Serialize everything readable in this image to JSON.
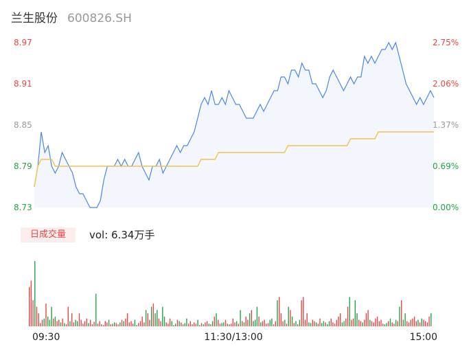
{
  "header": {
    "name": "兰生股份",
    "code": "600826.SH"
  },
  "volume_panel": {
    "tab_label": "日成交量",
    "vol_text": "vol: 6.34万手"
  },
  "colors": {
    "price_line": "#4a86e8",
    "avg_line": "#f3c250",
    "up": "#e84545",
    "down": "#22a447",
    "flat": "#999999"
  },
  "chart_data": [
    {
      "type": "line",
      "title": "",
      "xlabel": "",
      "ylabel": "",
      "x_tick_labels": [
        "09:30",
        "11:30/13:00",
        "15:00"
      ],
      "y_left_ticks": [
        "8.97",
        "8.91",
        "8.85",
        "8.79",
        "8.73"
      ],
      "y_right_ticks": [
        "2.75%",
        "2.06%",
        "1.37%",
        "0.69%",
        "0.00%"
      ],
      "ylim": [
        8.73,
        8.97
      ],
      "prev_close": 8.73,
      "grid": false,
      "series": [
        {
          "role": "price",
          "values": [
            8.76,
            8.79,
            8.84,
            8.81,
            8.82,
            8.79,
            8.78,
            8.79,
            8.81,
            8.8,
            8.79,
            8.78,
            8.76,
            8.75,
            8.75,
            8.74,
            8.73,
            8.73,
            8.73,
            8.74,
            8.77,
            8.79,
            8.79,
            8.79,
            8.8,
            8.79,
            8.8,
            8.79,
            8.79,
            8.8,
            8.81,
            8.79,
            8.78,
            8.77,
            8.79,
            8.79,
            8.8,
            8.78,
            8.79,
            8.8,
            8.81,
            8.82,
            8.81,
            8.82,
            8.82,
            8.83,
            8.84,
            8.86,
            8.88,
            8.89,
            8.88,
            8.9,
            8.88,
            8.88,
            8.89,
            8.88,
            8.9,
            8.89,
            8.88,
            8.88,
            8.87,
            8.86,
            8.86,
            8.86,
            8.87,
            8.88,
            8.87,
            8.88,
            8.89,
            8.9,
            8.9,
            8.92,
            8.92,
            8.91,
            8.93,
            8.93,
            8.92,
            8.94,
            8.93,
            8.93,
            8.91,
            8.91,
            8.9,
            8.89,
            8.9,
            8.92,
            8.93,
            8.92,
            8.91,
            8.9,
            8.91,
            8.92,
            8.91,
            8.92,
            8.92,
            8.95,
            8.94,
            8.95,
            8.94,
            8.95,
            8.96,
            8.96,
            8.97,
            8.96,
            8.97,
            8.95,
            8.93,
            8.91,
            8.9,
            8.89,
            8.88,
            8.89,
            8.88,
            8.89,
            8.9,
            8.89
          ]
        },
        {
          "role": "average",
          "values": [
            8.76,
            8.79,
            8.8,
            8.8,
            8.8,
            8.8,
            8.79,
            8.79,
            8.79,
            8.79,
            8.79,
            8.79,
            8.79,
            8.79,
            8.79,
            8.79,
            8.79,
            8.79,
            8.79,
            8.79,
            8.79,
            8.79,
            8.79,
            8.79,
            8.79,
            8.79,
            8.79,
            8.79,
            8.79,
            8.79,
            8.79,
            8.79,
            8.79,
            8.79,
            8.79,
            8.79,
            8.79,
            8.79,
            8.79,
            8.79,
            8.79,
            8.79,
            8.79,
            8.79,
            8.79,
            8.79,
            8.79,
            8.79,
            8.8,
            8.8,
            8.8,
            8.8,
            8.8,
            8.81,
            8.81,
            8.81,
            8.81,
            8.81,
            8.81,
            8.81,
            8.81,
            8.81,
            8.81,
            8.81,
            8.81,
            8.81,
            8.81,
            8.81,
            8.81,
            8.81,
            8.81,
            8.81,
            8.81,
            8.82,
            8.82,
            8.82,
            8.82,
            8.82,
            8.82,
            8.82,
            8.82,
            8.82,
            8.82,
            8.82,
            8.82,
            8.82,
            8.82,
            8.82,
            8.82,
            8.82,
            8.82,
            8.83,
            8.83,
            8.83,
            8.83,
            8.83,
            8.83,
            8.83,
            8.83,
            8.84,
            8.84,
            8.84,
            8.84,
            8.84,
            8.84,
            8.84,
            8.84,
            8.84,
            8.84,
            8.84,
            8.84,
            8.84,
            8.84,
            8.84,
            8.84,
            8.84
          ]
        }
      ]
    },
    {
      "type": "bar",
      "title": "",
      "unit": "relative",
      "volumes": [
        60,
        70,
        40,
        100,
        30,
        20,
        5,
        10,
        12,
        35,
        15,
        10,
        30,
        12,
        15,
        8,
        10,
        6,
        12,
        5,
        3,
        30,
        8,
        20,
        6,
        10,
        8,
        20,
        10,
        4,
        8,
        12,
        5,
        10,
        3,
        7,
        50,
        4,
        8,
        3,
        2,
        8,
        6,
        10,
        3,
        4,
        6,
        5,
        3,
        6,
        10,
        8,
        12,
        20,
        6,
        8,
        4,
        10,
        2,
        5,
        8,
        15,
        6,
        25,
        20,
        10,
        30,
        35,
        20,
        25,
        12,
        8,
        30,
        15,
        6,
        4,
        12,
        8,
        2,
        4,
        10,
        8,
        6,
        3,
        5,
        12,
        4,
        8,
        3,
        6,
        4,
        10,
        2,
        5,
        3,
        6,
        8,
        4,
        3,
        8,
        15,
        20,
        10,
        4,
        5,
        6,
        10,
        4,
        3,
        4,
        12,
        6,
        8,
        4,
        25,
        8,
        6,
        15,
        10,
        20,
        25,
        8,
        10,
        30,
        15,
        6,
        8,
        10,
        4,
        5,
        10,
        12,
        3,
        8,
        40,
        45,
        20,
        8,
        10,
        4,
        30,
        25,
        15,
        5,
        8,
        3,
        10,
        40,
        45,
        10,
        20,
        6,
        5,
        10,
        8,
        6,
        4,
        12,
        5,
        8,
        6,
        3,
        8,
        12,
        6,
        4,
        10,
        15,
        20,
        6,
        8,
        12,
        30,
        45,
        10,
        12,
        40,
        20,
        10,
        8,
        6,
        10,
        20,
        25,
        10,
        8,
        6,
        12,
        15,
        8,
        10,
        4,
        3,
        5,
        8,
        12,
        6,
        4,
        10,
        8,
        30,
        40,
        10,
        20,
        8,
        6,
        10,
        12,
        15,
        8,
        10,
        6,
        12,
        10,
        8,
        6,
        15,
        20
      ],
      "directions": [
        "u",
        "u",
        "u",
        "d",
        "u",
        "u",
        "u",
        "u",
        "d",
        "u",
        "d",
        "d",
        "d",
        "u",
        "d",
        "u",
        "u",
        "d",
        "u",
        "d",
        "u",
        "u",
        "d",
        "u",
        "u",
        "d",
        "d",
        "u",
        "u",
        "u",
        "u",
        "u",
        "d",
        "u",
        "u",
        "u",
        "d",
        "u",
        "u",
        "d",
        "u",
        "u",
        "u",
        "d",
        "u",
        "u",
        "d",
        "u",
        "u",
        "d",
        "u",
        "d",
        "u",
        "u",
        "u",
        "u",
        "u",
        "d",
        "d",
        "u",
        "u",
        "u",
        "u",
        "d",
        "u",
        "u",
        "d",
        "u",
        "d",
        "d",
        "u",
        "u",
        "d",
        "d",
        "u",
        "u",
        "u",
        "d",
        "u",
        "d",
        "u",
        "d",
        "u",
        "u",
        "d",
        "d",
        "u",
        "u",
        "u",
        "u",
        "u",
        "d",
        "d",
        "u",
        "d",
        "u",
        "u",
        "d",
        "u",
        "d",
        "u",
        "d",
        "u",
        "u",
        "d",
        "d",
        "u",
        "u",
        "d",
        "u",
        "u",
        "u",
        "d",
        "u",
        "d",
        "u",
        "d",
        "u",
        "u",
        "d",
        "u",
        "d",
        "d",
        "d",
        "u",
        "d",
        "u",
        "u",
        "u",
        "u",
        "d",
        "d",
        "u",
        "u",
        "d",
        "u",
        "u",
        "u",
        "d",
        "u",
        "d",
        "u",
        "d",
        "u",
        "d",
        "u",
        "d",
        "u",
        "u",
        "u",
        "u",
        "d",
        "d",
        "u",
        "u",
        "d",
        "u",
        "u",
        "d",
        "d",
        "u",
        "d",
        "d",
        "u",
        "u",
        "u",
        "u",
        "u",
        "u",
        "d",
        "d",
        "u",
        "u",
        "d",
        "u",
        "u",
        "d",
        "d",
        "u",
        "u",
        "d",
        "u",
        "u",
        "u",
        "d",
        "u",
        "u",
        "u",
        "u",
        "u",
        "u",
        "u",
        "d",
        "d",
        "u",
        "d",
        "u",
        "u",
        "d",
        "u",
        "d",
        "u",
        "d",
        "d",
        "u",
        "u",
        "u",
        "u",
        "u",
        "u",
        "d",
        "u",
        "d",
        "u",
        "u",
        "u",
        "u",
        "d",
        "u",
        "u",
        "d"
      ]
    }
  ]
}
